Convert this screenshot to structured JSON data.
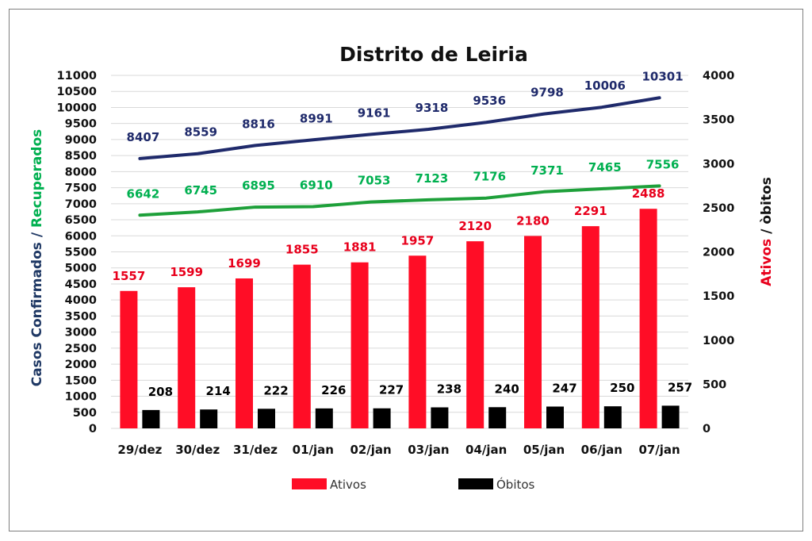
{
  "chart_data": {
    "type": "bar",
    "title": "Distrito de Leiria",
    "categories": [
      "29/dez",
      "30/dez",
      "31/dez",
      "01/jan",
      "02/jan",
      "03/jan",
      "04/jan",
      "05/jan",
      "06/jan",
      "07/jan"
    ],
    "y_left": {
      "ylim": [
        0,
        11000
      ],
      "ticks": [
        0,
        500,
        1000,
        1500,
        2000,
        2500,
        3000,
        3500,
        4000,
        4500,
        5000,
        5500,
        6000,
        6500,
        7000,
        7500,
        8000,
        8500,
        9000,
        9500,
        10000,
        10500,
        11000
      ],
      "label_parts": [
        {
          "text": "Casos Confirmados",
          "color": "#1f3864"
        },
        {
          "text": " / ",
          "color": "#1f3864"
        },
        {
          "text": "Recuperados",
          "color": "#00b050"
        }
      ]
    },
    "y_right": {
      "ylim": [
        0,
        4000
      ],
      "ticks": [
        0,
        500,
        1000,
        1500,
        2000,
        2500,
        3000,
        3500,
        4000
      ],
      "label_parts": [
        {
          "text": "Ativos",
          "color": "#e8001c"
        },
        {
          "text": " / òbitos",
          "color": "#111111"
        }
      ]
    },
    "series": [
      {
        "name": "",
        "kind": "line",
        "axis": "left",
        "color": "#1f2a6b",
        "label_color": "#1f2a6b",
        "values": [
          8407,
          8559,
          8816,
          8991,
          9161,
          9318,
          9536,
          9798,
          10006,
          10301
        ]
      },
      {
        "name": "",
        "kind": "line",
        "axis": "left",
        "color": "#1ea03a",
        "label_color": "#00b050",
        "values": [
          6642,
          6745,
          6895,
          6910,
          7053,
          7123,
          7176,
          7371,
          7465,
          7556
        ]
      },
      {
        "name": "Ativos",
        "kind": "bar",
        "axis": "right",
        "color": "#ff0d26",
        "label_color": "#e8001c",
        "values": [
          1557,
          1599,
          1699,
          1855,
          1881,
          1957,
          2120,
          2180,
          2291,
          2488
        ]
      },
      {
        "name": "Óbitos",
        "kind": "bar",
        "axis": "right",
        "color": "#000000",
        "label_color": "#000000",
        "values": [
          208,
          214,
          222,
          226,
          227,
          238,
          240,
          247,
          250,
          257
        ]
      }
    ],
    "legend": {
      "position": "bottom",
      "items": [
        "Ativos",
        "Óbitos"
      ]
    },
    "grid": true
  }
}
